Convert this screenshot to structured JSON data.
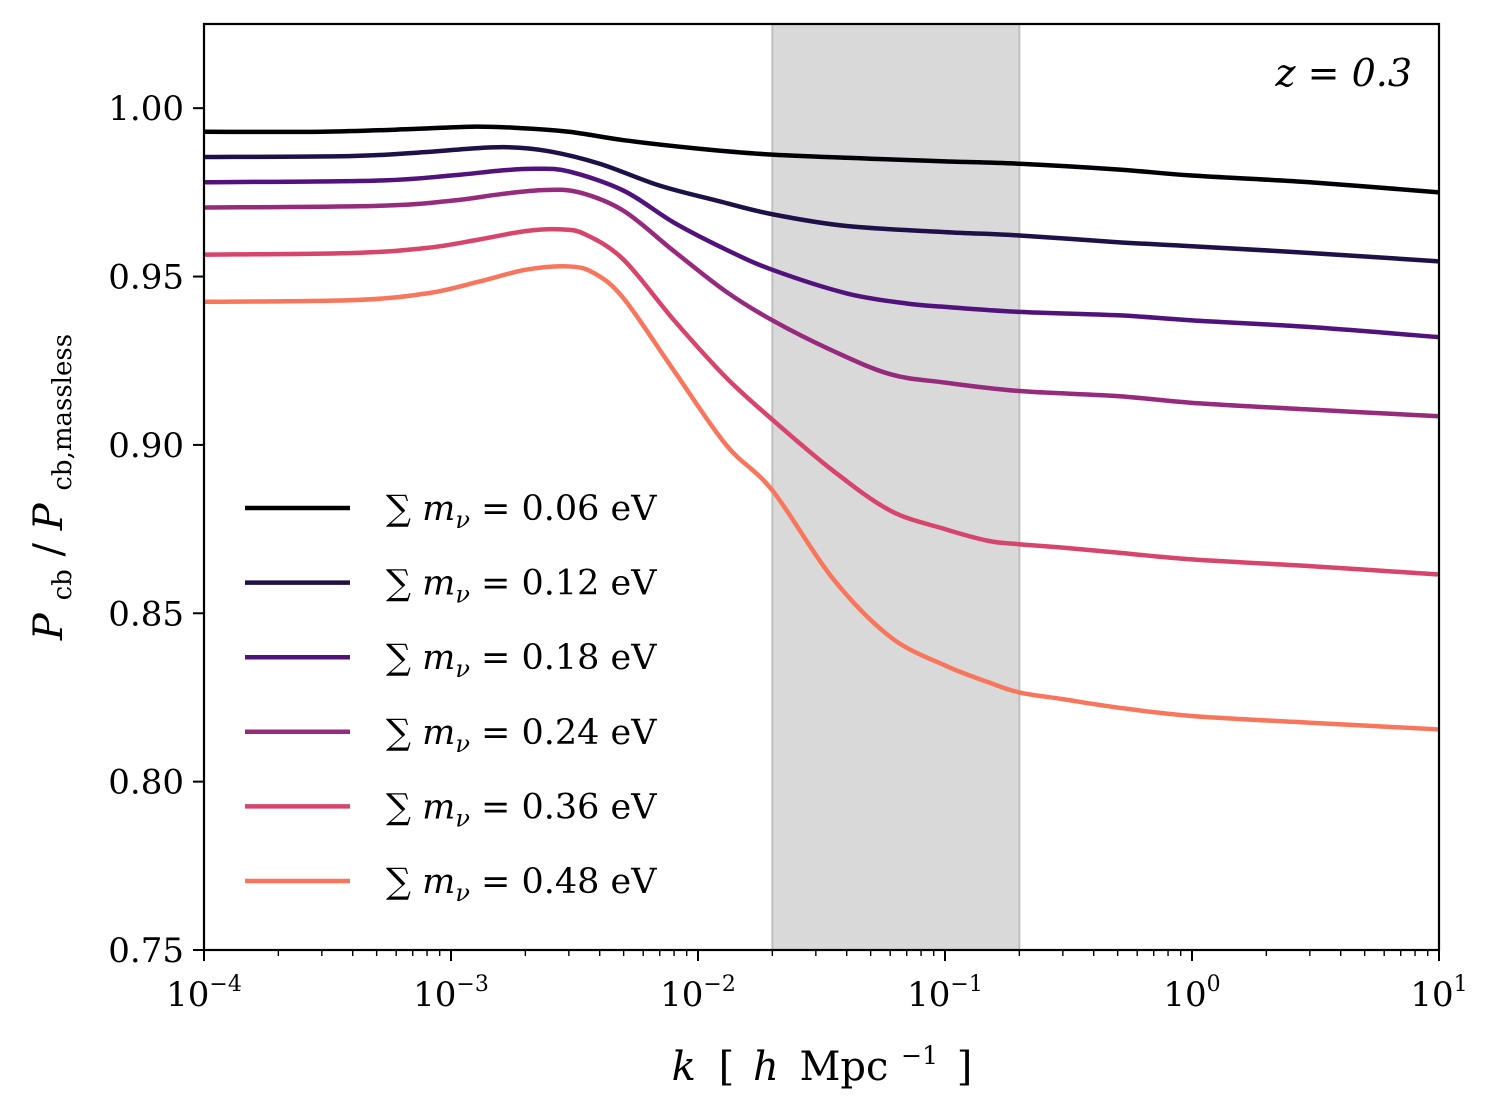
{
  "chart_data": {
    "type": "line",
    "xscale": "log",
    "xlim": [
      0.0001,
      10
    ],
    "ylim": [
      0.75,
      1.025
    ],
    "xlabel": "k [ h Mpc^-1 ]",
    "xlabel_parts": {
      "k": "k",
      "lb": "[",
      "h": "h",
      "mpc": "Mpc",
      "exp": "−1",
      "rb": "]"
    },
    "ylabel": "P_cb / P_cb,massless",
    "ylabel_parts": {
      "p1": "P",
      "sub1": "cb",
      "slash": "/",
      "p2": "P",
      "sub2": "cb,massless"
    },
    "annotation": "z = 0.3",
    "shaded_band": {
      "x_min": 0.02,
      "x_max": 0.2,
      "color": "#d9d9d9"
    },
    "x_ticks": [
      {
        "value": 0.0001,
        "base": "10",
        "exp": "−4"
      },
      {
        "value": 0.001,
        "base": "10",
        "exp": "−3"
      },
      {
        "value": 0.01,
        "base": "10",
        "exp": "−2"
      },
      {
        "value": 0.1,
        "base": "10",
        "exp": "−1"
      },
      {
        "value": 1,
        "base": "10",
        "exp": "0"
      },
      {
        "value": 10,
        "base": "10",
        "exp": "1"
      }
    ],
    "y_ticks": [
      {
        "value": 0.75,
        "label": "0.75"
      },
      {
        "value": 0.8,
        "label": "0.80"
      },
      {
        "value": 0.85,
        "label": "0.85"
      },
      {
        "value": 0.9,
        "label": "0.90"
      },
      {
        "value": 0.95,
        "label": "0.95"
      },
      {
        "value": 1.0,
        "label": "1.00"
      }
    ],
    "series": [
      {
        "name": "∑ m_ν = 0.06 eV",
        "label_prefix": "∑ m",
        "label_sub": "ν",
        "label_value": " = 0.06 eV",
        "color": "#000004",
        "points": [
          [
            0.0001,
            0.993
          ],
          [
            0.0003,
            0.993
          ],
          [
            0.0007,
            0.9938
          ],
          [
            0.0012,
            0.9945
          ],
          [
            0.0018,
            0.9942
          ],
          [
            0.003,
            0.993
          ],
          [
            0.005,
            0.9905
          ],
          [
            0.01,
            0.988
          ],
          [
            0.02,
            0.9862
          ],
          [
            0.05,
            0.985
          ],
          [
            0.1,
            0.9842
          ],
          [
            0.2,
            0.9835
          ],
          [
            0.5,
            0.9818
          ],
          [
            1,
            0.98
          ],
          [
            3,
            0.978
          ],
          [
            10,
            0.975
          ]
        ]
      },
      {
        "name": "∑ m_ν = 0.12 eV",
        "label_prefix": "∑ m",
        "label_sub": "ν",
        "label_value": " = 0.12 eV",
        "color": "#1d1147",
        "points": [
          [
            0.0001,
            0.9855
          ],
          [
            0.0004,
            0.9858
          ],
          [
            0.0008,
            0.987
          ],
          [
            0.0012,
            0.988
          ],
          [
            0.0017,
            0.9884
          ],
          [
            0.0025,
            0.9872
          ],
          [
            0.004,
            0.9835
          ],
          [
            0.007,
            0.977
          ],
          [
            0.012,
            0.9725
          ],
          [
            0.02,
            0.9685
          ],
          [
            0.04,
            0.965
          ],
          [
            0.1,
            0.9632
          ],
          [
            0.2,
            0.9622
          ],
          [
            0.5,
            0.9602
          ],
          [
            1,
            0.959
          ],
          [
            3,
            0.957
          ],
          [
            10,
            0.9545
          ]
        ]
      },
      {
        "name": "∑ m_ν = 0.18 eV",
        "label_prefix": "∑ m",
        "label_sub": "ν",
        "label_value": " = 0.18 eV",
        "color": "#51127c",
        "points": [
          [
            0.0001,
            0.978
          ],
          [
            0.0005,
            0.9785
          ],
          [
            0.001,
            0.98
          ],
          [
            0.0016,
            0.9815
          ],
          [
            0.0022,
            0.982
          ],
          [
            0.003,
            0.9812
          ],
          [
            0.005,
            0.9755
          ],
          [
            0.008,
            0.966
          ],
          [
            0.013,
            0.958
          ],
          [
            0.02,
            0.952
          ],
          [
            0.04,
            0.945
          ],
          [
            0.07,
            0.942
          ],
          [
            0.1,
            0.941
          ],
          [
            0.2,
            0.9395
          ],
          [
            0.5,
            0.9385
          ],
          [
            1,
            0.937
          ],
          [
            3,
            0.935
          ],
          [
            10,
            0.932
          ]
        ]
      },
      {
        "name": "∑ m_ν = 0.24 eV",
        "label_prefix": "∑ m",
        "label_sub": "ν",
        "label_value": " = 0.24 eV",
        "color": "#962b7d",
        "points": [
          [
            0.0001,
            0.9705
          ],
          [
            0.0005,
            0.971
          ],
          [
            0.001,
            0.9725
          ],
          [
            0.0016,
            0.9745
          ],
          [
            0.0024,
            0.9757
          ],
          [
            0.0033,
            0.975
          ],
          [
            0.005,
            0.9695
          ],
          [
            0.008,
            0.9575
          ],
          [
            0.013,
            0.9455
          ],
          [
            0.02,
            0.937
          ],
          [
            0.035,
            0.928
          ],
          [
            0.06,
            0.921
          ],
          [
            0.1,
            0.9185
          ],
          [
            0.2,
            0.916
          ],
          [
            0.5,
            0.9145
          ],
          [
            1,
            0.9125
          ],
          [
            3,
            0.9105
          ],
          [
            10,
            0.9085
          ]
        ]
      },
      {
        "name": "∑ m_ν = 0.36 eV",
        "label_prefix": "∑ m",
        "label_sub": "ν",
        "label_value": " = 0.36 eV",
        "color": "#d8456c",
        "points": [
          [
            0.0001,
            0.9565
          ],
          [
            0.0004,
            0.957
          ],
          [
            0.0008,
            0.9585
          ],
          [
            0.0013,
            0.961
          ],
          [
            0.002,
            0.9635
          ],
          [
            0.0028,
            0.964
          ],
          [
            0.0035,
            0.9625
          ],
          [
            0.005,
            0.955
          ],
          [
            0.008,
            0.937
          ],
          [
            0.013,
            0.92
          ],
          [
            0.02,
            0.9075
          ],
          [
            0.035,
            0.8925
          ],
          [
            0.06,
            0.8805
          ],
          [
            0.1,
            0.875
          ],
          [
            0.15,
            0.8715
          ],
          [
            0.2,
            0.8705
          ],
          [
            0.3,
            0.8695
          ],
          [
            0.5,
            0.868
          ],
          [
            1,
            0.866
          ],
          [
            3,
            0.864
          ],
          [
            10,
            0.8615
          ]
        ]
      },
      {
        "name": "∑ m_ν = 0.48 eV",
        "label_prefix": "∑ m",
        "label_sub": "ν",
        "label_value": " = 0.48 eV",
        "color": "#f8765c",
        "points": [
          [
            0.0001,
            0.9425
          ],
          [
            0.0004,
            0.943
          ],
          [
            0.0008,
            0.945
          ],
          [
            0.0013,
            0.9485
          ],
          [
            0.002,
            0.952
          ],
          [
            0.003,
            0.953
          ],
          [
            0.0038,
            0.951
          ],
          [
            0.005,
            0.9435
          ],
          [
            0.008,
            0.922
          ],
          [
            0.013,
            0.9
          ],
          [
            0.02,
            0.8865
          ],
          [
            0.035,
            0.8605
          ],
          [
            0.06,
            0.843
          ],
          [
            0.1,
            0.8345
          ],
          [
            0.15,
            0.8295
          ],
          [
            0.2,
            0.8265
          ],
          [
            0.3,
            0.8245
          ],
          [
            0.5,
            0.822
          ],
          [
            1,
            0.8195
          ],
          [
            3,
            0.8175
          ],
          [
            10,
            0.8155
          ]
        ]
      }
    ]
  }
}
